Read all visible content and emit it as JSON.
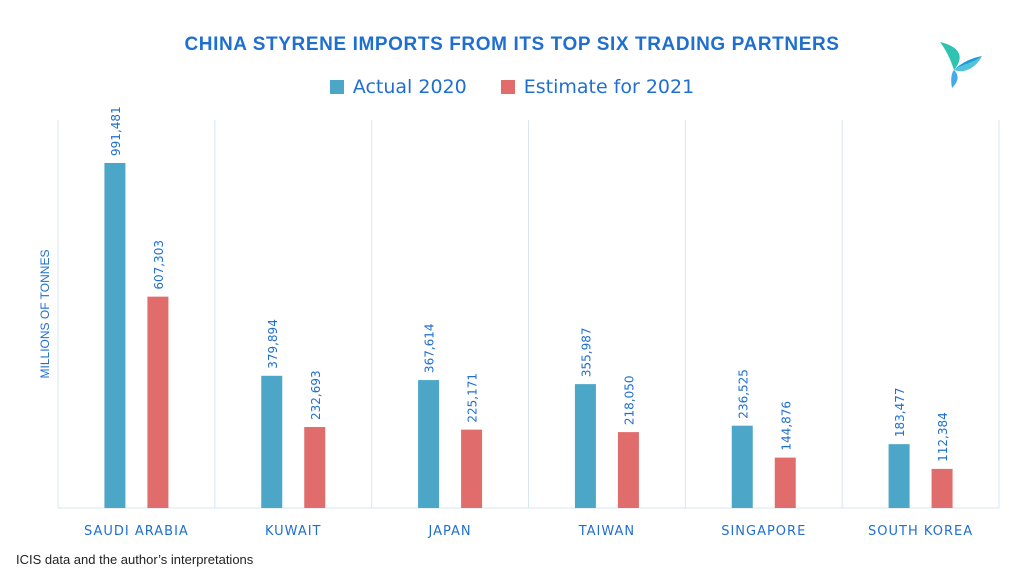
{
  "header": {
    "title": "CHINA STYRENE IMPORTS FROM ITS TOP SIX TRADING PARTNERS"
  },
  "legend": {
    "items": [
      {
        "label": "Actual 2020",
        "color": "#4ba6c8"
      },
      {
        "label": "Estimate for 2021",
        "color": "#e16c6c"
      }
    ]
  },
  "footer": {
    "source": "ICIS data and the author’s interpretations"
  },
  "logo": {
    "icon": "icis-logo-icon"
  },
  "colors": {
    "title": "#1f6fd1",
    "axis_text": "#1f6fd1",
    "grid": "#d7e6f2"
  },
  "chart_data": {
    "type": "bar",
    "title": "CHINA STYRENE IMPORTS FROM ITS TOP SIX TRADING PARTNERS",
    "xlabel": "",
    "ylabel": "MILLIONS OF TONNES",
    "categories": [
      "SAUDI ARABIA",
      "KUWAIT",
      "JAPAN",
      "TAIWAN",
      "SINGAPORE",
      "SOUTH KOREA"
    ],
    "series": [
      {
        "name": "Actual 2020",
        "color": "#4ba6c8",
        "values": [
          991481,
          379894,
          367614,
          355987,
          236525,
          183477
        ]
      },
      {
        "name": "Estimate for 2021",
        "color": "#e16c6c",
        "values": [
          607303,
          232693,
          225171,
          218050,
          144876,
          112384
        ]
      }
    ],
    "data_labels": [
      [
        "991,481",
        "379,894",
        "367,614",
        "355,987",
        "236,525",
        "183,477"
      ],
      [
        "607,303",
        "232,693",
        "225,171",
        "218,050",
        "144,876",
        "112,384"
      ]
    ],
    "ylim": [
      0,
      1000000
    ],
    "grid": "vertical category separators",
    "legend_position": "top"
  }
}
